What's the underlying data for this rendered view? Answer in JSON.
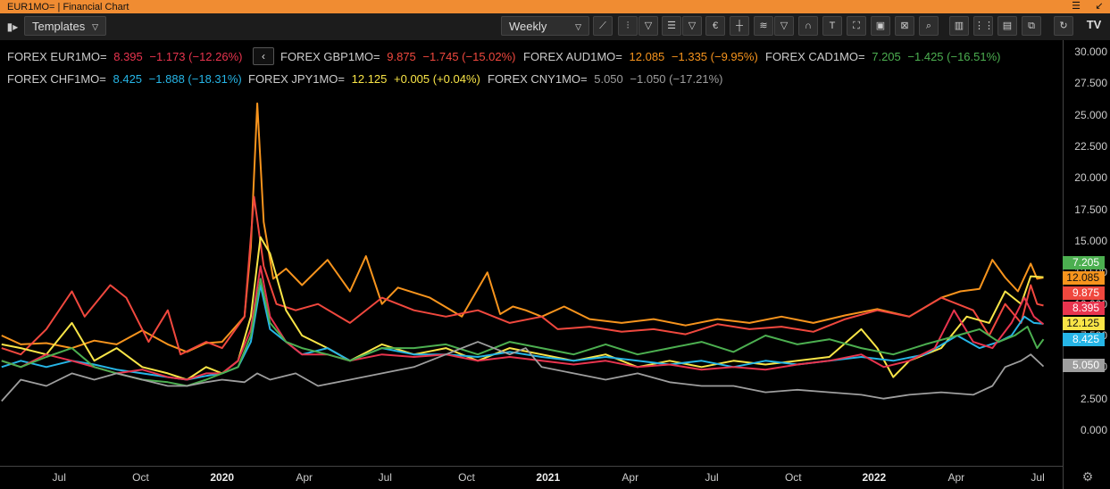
{
  "window": {
    "title": "EUR1MO= | Financial Chart",
    "minimize_glyph": "☰",
    "restore_glyph": "↙"
  },
  "toolbar": {
    "templates_label": "Templates",
    "interval_label": "Weekly",
    "icons": [
      "line-chart-icon",
      "candle-chart-icon",
      "dropdown-chevron-icon",
      "indicators-list-icon",
      "dropdown-chevron-icon",
      "currency-icon",
      "crosshair-icon",
      "studies-icon",
      "dropdown-chevron-icon",
      "magnet-icon",
      "text-icon",
      "zoom-box-icon",
      "fit-icon",
      "reset-zoom-icon",
      "search-icon",
      "bar-chart-icon",
      "grid-icon",
      "panel-icon",
      "compare-icon",
      "refresh-icon",
      "tradingview-logo-icon"
    ]
  },
  "legend": [
    {
      "label": "FOREX EUR1MO=",
      "value": "8.395",
      "change": "−1.173",
      "pct": "(−12.26%)",
      "color": "#e8344e"
    },
    {
      "label": "FOREX GBP1MO=",
      "value": "9.875",
      "change": "−1.745",
      "pct": "(−15.02%)",
      "color": "#f0483e"
    },
    {
      "label": "FOREX AUD1MO=",
      "value": "12.085",
      "change": "−1.335",
      "pct": "(−9.95%)",
      "color": "#f7941d"
    },
    {
      "label": "FOREX CAD1MO=",
      "value": "7.205",
      "change": "−1.425",
      "pct": "(−16.51%)",
      "color": "#4caf50"
    },
    {
      "label": "FOREX CHF1MO=",
      "value": "8.425",
      "change": "−1.888",
      "pct": "(−18.31%)",
      "color": "#26b5e6"
    },
    {
      "label": "FOREX JPY1MO=",
      "value": "12.125",
      "change": "+0.005",
      "pct": "(+0.04%)",
      "color": "#f9e547"
    },
    {
      "label": "FOREX CNY1MO=",
      "value": "5.050",
      "change": "−1.050",
      "pct": "(−17.21%)",
      "color": "#9e9e9e"
    }
  ],
  "chart_data": {
    "type": "line",
    "ylim": [
      -1.5,
      30.5
    ],
    "yticks": [
      "30.000",
      "27.500",
      "25.000",
      "22.500",
      "20.000",
      "17.500",
      "15.000",
      "12.500",
      "10.000",
      "7.500",
      "5.000",
      "2.500",
      "0.000"
    ],
    "ytick_values": [
      30,
      27.5,
      25,
      22.5,
      20,
      17.5,
      15,
      12.5,
      10,
      7.5,
      5,
      2.5,
      0
    ],
    "xticks": [
      {
        "label": "Jul",
        "bold": false
      },
      {
        "label": "Oct",
        "bold": false
      },
      {
        "label": "2020",
        "bold": true
      },
      {
        "label": "Apr",
        "bold": false
      },
      {
        "label": "Jul",
        "bold": false
      },
      {
        "label": "Oct",
        "bold": false
      },
      {
        "label": "2021",
        "bold": true
      },
      {
        "label": "Apr",
        "bold": false
      },
      {
        "label": "Jul",
        "bold": false
      },
      {
        "label": "Oct",
        "bold": false
      },
      {
        "label": "2022",
        "bold": true
      },
      {
        "label": "Apr",
        "bold": false
      },
      {
        "label": "Jul",
        "bold": false
      }
    ],
    "xtick_positions": [
      0.04,
      0.295,
      0.55,
      0.807,
      1.06,
      1.315,
      1.57,
      1.827,
      2.082,
      2.337,
      2.59,
      2.847,
      3.102
    ],
    "x_domain": [
      -0.145,
      3.18
    ],
    "series": [
      {
        "name": "FOREX AUD1MO=",
        "color": "#f7941d",
        "last": "12.085",
        "x": [
          -0.14,
          -0.08,
          0.0,
          0.08,
          0.15,
          0.22,
          0.3,
          0.38,
          0.44,
          0.5,
          0.55,
          0.62,
          0.64,
          0.66,
          0.68,
          0.71,
          0.75,
          0.8,
          0.88,
          0.95,
          1.0,
          1.05,
          1.1,
          1.2,
          1.3,
          1.38,
          1.42,
          1.46,
          1.5,
          1.55,
          1.62,
          1.7,
          1.8,
          1.9,
          2.0,
          2.1,
          2.2,
          2.3,
          2.4,
          2.5,
          2.6,
          2.7,
          2.8,
          2.86,
          2.92,
          2.96,
          3.0,
          3.04,
          3.08,
          3.1,
          3.12
        ],
        "y": [
          7.5,
          6.8,
          6.9,
          6.5,
          7.1,
          6.8,
          7.9,
          6.8,
          6.2,
          6.9,
          7.0,
          9.0,
          14.5,
          25.9,
          16.5,
          12.0,
          12.8,
          11.5,
          13.5,
          11.0,
          13.8,
          10.0,
          11.3,
          10.5,
          9.0,
          12.5,
          9.2,
          9.8,
          9.5,
          9.0,
          9.8,
          8.8,
          8.5,
          8.8,
          8.3,
          8.8,
          8.5,
          9.0,
          8.5,
          9.1,
          9.6,
          9.0,
          10.5,
          11.0,
          11.2,
          13.5,
          12.1,
          11.0,
          13.2,
          12.0,
          12.085
        ]
      },
      {
        "name": "FOREX GBP1MO=",
        "color": "#f0483e",
        "last": "9.875",
        "x": [
          -0.14,
          -0.08,
          0.0,
          0.08,
          0.12,
          0.2,
          0.25,
          0.32,
          0.38,
          0.42,
          0.5,
          0.55,
          0.62,
          0.65,
          0.68,
          0.72,
          0.78,
          0.85,
          0.95,
          1.05,
          1.15,
          1.25,
          1.35,
          1.45,
          1.55,
          1.6,
          1.7,
          1.8,
          1.9,
          2.0,
          2.1,
          2.2,
          2.3,
          2.4,
          2.5,
          2.6,
          2.7,
          2.8,
          2.9,
          2.95,
          3.0,
          3.05,
          3.08,
          3.1,
          3.12
        ],
        "y": [
          6.5,
          6.0,
          8.0,
          11.0,
          9.0,
          11.5,
          10.5,
          7.0,
          9.5,
          6.0,
          7.0,
          6.5,
          9.0,
          18.5,
          13.0,
          10.0,
          9.5,
          10.0,
          8.5,
          10.5,
          9.5,
          9.0,
          9.5,
          8.5,
          9.0,
          8.0,
          8.2,
          7.8,
          8.0,
          7.6,
          8.4,
          8.0,
          8.2,
          7.8,
          8.8,
          9.5,
          9.0,
          10.5,
          9.5,
          7.5,
          10.0,
          8.5,
          11.5,
          10.0,
          9.875
        ]
      },
      {
        "name": "FOREX JPY1MO=",
        "color": "#f9e547",
        "last": "12.125",
        "x": [
          -0.14,
          -0.08,
          0.0,
          0.08,
          0.15,
          0.22,
          0.3,
          0.38,
          0.44,
          0.5,
          0.55,
          0.6,
          0.64,
          0.67,
          0.7,
          0.75,
          0.8,
          0.88,
          0.95,
          1.05,
          1.15,
          1.25,
          1.35,
          1.45,
          1.55,
          1.65,
          1.75,
          1.85,
          1.95,
          2.05,
          2.15,
          2.25,
          2.35,
          2.45,
          2.55,
          2.6,
          2.65,
          2.7,
          2.8,
          2.88,
          2.95,
          3.0,
          3.05,
          3.08,
          3.12
        ],
        "y": [
          6.8,
          6.5,
          6.0,
          8.5,
          5.5,
          6.5,
          5.0,
          4.5,
          4.0,
          5.0,
          4.5,
          5.5,
          9.0,
          15.3,
          14.0,
          9.5,
          7.5,
          6.5,
          5.5,
          6.8,
          6.0,
          6.5,
          5.5,
          6.5,
          6.0,
          5.5,
          6.0,
          5.0,
          5.5,
          5.0,
          5.5,
          5.2,
          5.5,
          5.8,
          8.0,
          6.5,
          4.2,
          5.5,
          6.5,
          9.0,
          8.5,
          11.0,
          10.0,
          12.2,
          12.125
        ]
      },
      {
        "name": "FOREX CHF1MO=",
        "color": "#26b5e6",
        "last": "8.425",
        "x": [
          -0.14,
          -0.08,
          0.0,
          0.08,
          0.15,
          0.22,
          0.3,
          0.38,
          0.44,
          0.5,
          0.55,
          0.6,
          0.64,
          0.67,
          0.7,
          0.75,
          0.8,
          0.88,
          0.95,
          1.05,
          1.15,
          1.25,
          1.35,
          1.45,
          1.55,
          1.65,
          1.75,
          1.85,
          1.95,
          2.05,
          2.15,
          2.25,
          2.35,
          2.45,
          2.55,
          2.65,
          2.75,
          2.85,
          2.92,
          2.98,
          3.02,
          3.06,
          3.09,
          3.12
        ],
        "y": [
          5.0,
          5.5,
          5.0,
          5.5,
          5.2,
          4.8,
          4.5,
          4.2,
          4.0,
          4.3,
          4.5,
          5.0,
          7.0,
          11.5,
          8.0,
          7.0,
          6.0,
          6.5,
          5.5,
          6.5,
          6.0,
          6.0,
          5.8,
          6.2,
          5.8,
          5.5,
          5.8,
          5.5,
          5.2,
          5.5,
          5.0,
          5.5,
          5.2,
          5.5,
          5.8,
          5.5,
          6.0,
          7.5,
          6.5,
          7.0,
          7.5,
          9.0,
          8.5,
          8.425
        ]
      },
      {
        "name": "FOREX EUR1MO=",
        "color": "#e8344e",
        "last": "8.395",
        "x": [
          -0.14,
          -0.08,
          0.0,
          0.08,
          0.15,
          0.22,
          0.3,
          0.38,
          0.44,
          0.5,
          0.55,
          0.6,
          0.64,
          0.67,
          0.7,
          0.75,
          0.8,
          0.88,
          0.95,
          1.05,
          1.15,
          1.25,
          1.35,
          1.45,
          1.55,
          1.65,
          1.75,
          1.85,
          1.95,
          2.05,
          2.15,
          2.25,
          2.35,
          2.45,
          2.55,
          2.62,
          2.7,
          2.78,
          2.84,
          2.9,
          2.96,
          3.02,
          3.06,
          3.09,
          3.12
        ],
        "y": [
          5.5,
          5.0,
          6.0,
          5.5,
          5.0,
          4.5,
          4.8,
          4.2,
          4.0,
          4.5,
          4.5,
          5.5,
          8.0,
          13.0,
          9.0,
          7.0,
          6.0,
          6.0,
          5.5,
          6.0,
          5.8,
          6.0,
          5.5,
          5.8,
          5.5,
          5.2,
          5.5,
          5.0,
          5.2,
          4.8,
          5.0,
          4.8,
          5.2,
          5.5,
          6.0,
          5.0,
          5.5,
          6.5,
          9.5,
          7.0,
          6.5,
          8.5,
          10.5,
          9.0,
          8.395
        ]
      },
      {
        "name": "FOREX CAD1MO=",
        "color": "#4caf50",
        "last": "7.205",
        "x": [
          -0.14,
          -0.08,
          0.0,
          0.08,
          0.15,
          0.22,
          0.3,
          0.38,
          0.44,
          0.5,
          0.55,
          0.6,
          0.64,
          0.67,
          0.7,
          0.75,
          0.8,
          0.88,
          0.95,
          1.05,
          1.15,
          1.25,
          1.35,
          1.45,
          1.55,
          1.65,
          1.75,
          1.85,
          1.95,
          2.05,
          2.15,
          2.25,
          2.35,
          2.45,
          2.55,
          2.65,
          2.75,
          2.85,
          2.92,
          2.98,
          3.03,
          3.07,
          3.1,
          3.12
        ],
        "y": [
          5.5,
          5.0,
          5.8,
          6.5,
          5.0,
          4.5,
          4.0,
          3.8,
          3.5,
          4.0,
          4.5,
          5.0,
          7.5,
          12.0,
          8.5,
          7.0,
          6.5,
          6.0,
          5.5,
          6.5,
          6.5,
          6.8,
          6.0,
          7.0,
          6.5,
          6.0,
          6.8,
          6.0,
          6.5,
          7.0,
          6.2,
          7.5,
          6.8,
          7.2,
          6.5,
          6.0,
          6.8,
          7.5,
          8.0,
          7.0,
          7.5,
          8.2,
          6.5,
          7.205
        ]
      },
      {
        "name": "FOREX CNY1MO=",
        "color": "#9e9e9e",
        "last": "5.050",
        "x": [
          -0.14,
          -0.08,
          0.0,
          0.08,
          0.15,
          0.22,
          0.3,
          0.38,
          0.44,
          0.5,
          0.55,
          0.62,
          0.66,
          0.7,
          0.78,
          0.85,
          0.95,
          1.05,
          1.15,
          1.25,
          1.35,
          1.45,
          1.5,
          1.55,
          1.65,
          1.75,
          1.85,
          1.95,
          2.05,
          2.15,
          2.25,
          2.35,
          2.45,
          2.55,
          2.62,
          2.7,
          2.8,
          2.9,
          2.96,
          3.0,
          3.05,
          3.08,
          3.12
        ],
        "y": [
          2.3,
          4.0,
          3.5,
          4.5,
          4.0,
          4.5,
          4.0,
          3.5,
          3.5,
          3.8,
          4.0,
          3.8,
          4.5,
          4.0,
          4.5,
          3.5,
          4.0,
          4.5,
          5.0,
          6.0,
          7.0,
          6.0,
          6.5,
          5.0,
          4.5,
          4.0,
          4.5,
          3.8,
          3.5,
          3.5,
          3.0,
          3.2,
          3.0,
          2.8,
          2.5,
          2.8,
          3.0,
          2.8,
          3.5,
          5.0,
          5.5,
          6.0,
          5.05
        ]
      }
    ]
  }
}
